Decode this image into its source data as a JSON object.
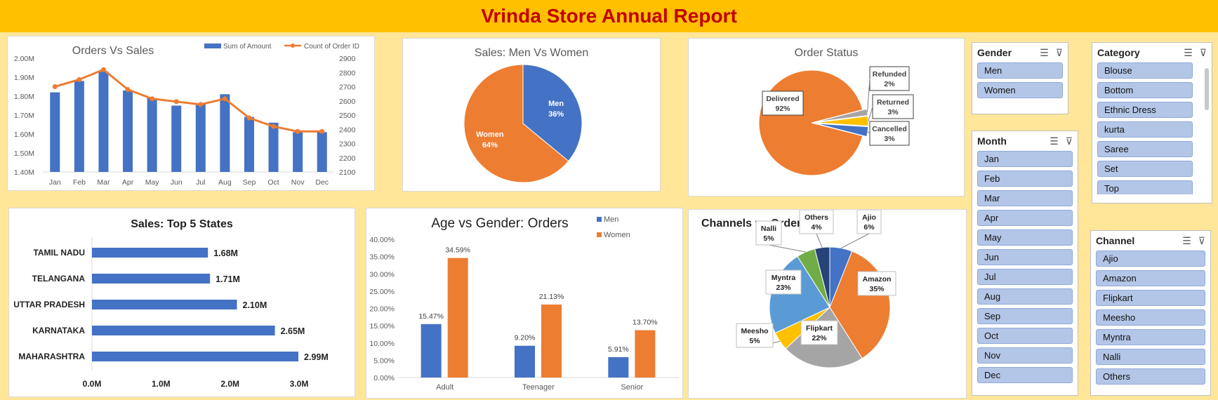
{
  "report_title": "Vrinda Store Annual Report",
  "charts": {
    "orders_vs_sales": {
      "title": "Orders Vs Sales",
      "legend": [
        "Sum of Amount",
        "Count of Order ID"
      ],
      "months": [
        "Jan",
        "Feb",
        "Mar",
        "Apr",
        "May",
        "Jun",
        "Jul",
        "Aug",
        "Sep",
        "Oct",
        "Nov",
        "Dec"
      ],
      "left_ticks": [
        "2.00M",
        "1.90M",
        "1.80M",
        "1.70M",
        "1.60M",
        "1.50M",
        "1.40M"
      ],
      "right_ticks": [
        "2900",
        "2800",
        "2700",
        "2600",
        "2500",
        "2400",
        "2300",
        "2200",
        "2100"
      ]
    },
    "men_vs_women": {
      "title": "Sales: Men Vs Women"
    },
    "order_status": {
      "title": "Order Status"
    },
    "top_states": {
      "title": "Sales: Top 5 States",
      "x_ticks": [
        "0.0M",
        "1.0M",
        "2.0M",
        "3.0M"
      ]
    },
    "age_gender": {
      "title": "Age vs Gender: Orders",
      "y_ticks": [
        "40.00%",
        "35.00%",
        "30.00%",
        "25.00%",
        "20.00%",
        "15.00%",
        "10.00%",
        "5.00%",
        "0.00%"
      ]
    },
    "channels": {
      "title": "Channels vs Orders"
    }
  },
  "chart_data": [
    {
      "type": "bar",
      "title": "Orders Vs Sales",
      "categories": [
        "Jan",
        "Feb",
        "Mar",
        "Apr",
        "May",
        "Jun",
        "Jul",
        "Aug",
        "Sep",
        "Oct",
        "Nov",
        "Dec"
      ],
      "series": [
        {
          "name": "Sum of Amount",
          "type": "bar",
          "axis": "left",
          "values": [
            1.82,
            1.88,
            1.93,
            1.83,
            1.79,
            1.75,
            1.76,
            1.81,
            1.69,
            1.66,
            1.61,
            1.61
          ]
        },
        {
          "name": "Count of Order ID",
          "type": "line",
          "axis": "right",
          "values": [
            2700,
            2750,
            2820,
            2680,
            2615,
            2595,
            2575,
            2615,
            2480,
            2420,
            2385,
            2385
          ]
        }
      ],
      "ylim_left": [
        1.4,
        2.0
      ],
      "ylim_right": [
        2100,
        2900
      ],
      "legend": "top-right"
    },
    {
      "type": "pie",
      "title": "Sales: Men Vs Women",
      "labels": [
        "Men",
        "Women"
      ],
      "values": [
        36,
        64
      ],
      "display": [
        "36%",
        "64%"
      ],
      "colors": [
        "#4472c4",
        "#ed7d31"
      ]
    },
    {
      "type": "pie",
      "title": "Order Status",
      "labels": [
        "Delivered",
        "Refunded",
        "Returned",
        "Cancelled"
      ],
      "values": [
        92,
        2,
        3,
        3
      ],
      "display": [
        "92%",
        "2%",
        "3%",
        "3%"
      ],
      "colors": [
        "#ed7d31",
        "#a5a5a5",
        "#ffc000",
        "#4472c4"
      ]
    },
    {
      "type": "bar",
      "orientation": "horizontal",
      "title": "Sales: Top 5 States",
      "categories": [
        "TAMIL NADU",
        "TELANGANA",
        "UTTAR PRADESH",
        "KARNATAKA",
        "MAHARASHTRA"
      ],
      "values": [
        1.68,
        1.71,
        2.1,
        2.65,
        2.99
      ],
      "display": [
        "1.68M",
        "1.71M",
        "2.10M",
        "2.65M",
        "2.99M"
      ],
      "xlim": [
        0,
        3.0
      ]
    },
    {
      "type": "bar",
      "title": "Age vs Gender: Orders",
      "categories": [
        "Adult",
        "Teenager",
        "Senior"
      ],
      "series": [
        {
          "name": "Men",
          "values": [
            15.47,
            9.2,
            5.91
          ],
          "display": [
            "15.47%",
            "9.20%",
            "5.91%"
          ]
        },
        {
          "name": "Women",
          "values": [
            34.59,
            21.13,
            13.7
          ],
          "display": [
            "34.59%",
            "21.13%",
            "13.70%"
          ]
        }
      ],
      "ylim": [
        0,
        40
      ],
      "legend": "top-right"
    },
    {
      "type": "pie",
      "title": "Channels vs Orders",
      "labels": [
        "Ajio",
        "Amazon",
        "Flipkart",
        "Meesho",
        "Myntra",
        "Nalli",
        "Others"
      ],
      "values": [
        6,
        35,
        22,
        5,
        23,
        5,
        4
      ],
      "display": [
        "6%",
        "35%",
        "22%",
        "5%",
        "23%",
        "5%",
        "4%"
      ],
      "colors": [
        "#4472c4",
        "#ed7d31",
        "#a5a5a5",
        "#ffc000",
        "#5b9bd5",
        "#70ad47",
        "#264478"
      ]
    }
  ],
  "slicers": {
    "gender": {
      "title": "Gender",
      "items": [
        "Men",
        "Women"
      ]
    },
    "month": {
      "title": "Month",
      "items": [
        "Jan",
        "Feb",
        "Mar",
        "Apr",
        "May",
        "Jun",
        "Jul",
        "Aug",
        "Sep",
        "Oct",
        "Nov",
        "Dec"
      ]
    },
    "category": {
      "title": "Category",
      "items": [
        "Blouse",
        "Bottom",
        "Ethnic Dress",
        "kurta",
        "Saree",
        "Set",
        "Top"
      ]
    },
    "channel": {
      "title": "Channel",
      "items": [
        "Ajio",
        "Amazon",
        "Flipkart",
        "Meesho",
        "Myntra",
        "Nalli",
        "Others"
      ]
    }
  },
  "icons": {
    "multiselect": "multiselect-icon",
    "clear_filter": "clear-filter-icon"
  },
  "colors": {
    "title_bar": "#ffc000",
    "title_text": "#c00000",
    "background": "#ffe699",
    "blue": "#4472c4",
    "orange": "#ed7d31"
  }
}
